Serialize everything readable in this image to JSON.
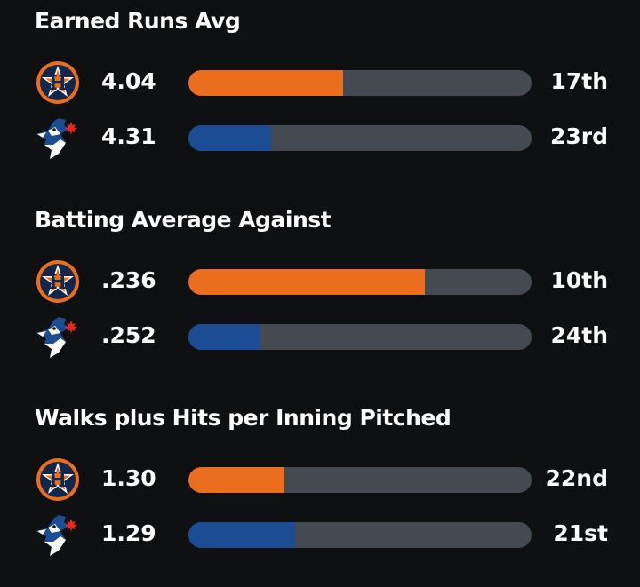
{
  "teams": {
    "astros": {
      "name": "Houston Astros",
      "logo_icon": "astros-logo-icon",
      "color": "#eb6e1f",
      "navy": "#13274a"
    },
    "bluejays": {
      "name": "Toronto Blue Jays",
      "logo_icon": "bluejays-logo-icon",
      "color": "#1b4c94"
    }
  },
  "track_color": "#454a52",
  "chart_data": [
    {
      "type": "bar",
      "title": "Earned Runs Avg",
      "rows": [
        {
          "team": "astros",
          "value": "4.04",
          "rank": "17th",
          "fill_fraction": 0.45
        },
        {
          "team": "bluejays",
          "value": "4.31",
          "rank": "23rd",
          "fill_fraction": 0.24
        }
      ]
    },
    {
      "type": "bar",
      "title": "Batting Average Against",
      "rows": [
        {
          "team": "astros",
          "value": ".236",
          "rank": "10th",
          "fill_fraction": 0.69
        },
        {
          "team": "bluejays",
          "value": ".252",
          "rank": "24th",
          "fill_fraction": 0.21
        }
      ]
    },
    {
      "type": "bar",
      "title": "Walks plus Hits per Inning Pitched",
      "rows": [
        {
          "team": "astros",
          "value": "1.30",
          "rank": "22nd",
          "fill_fraction": 0.28
        },
        {
          "team": "bluejays",
          "value": "1.29",
          "rank": "21st",
          "fill_fraction": 0.31
        }
      ]
    }
  ]
}
